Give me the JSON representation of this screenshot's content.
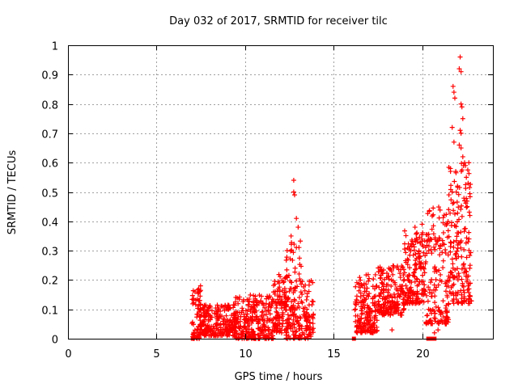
{
  "chart_data": {
    "type": "scatter",
    "title": "Day 032 of 2017, SRMTID for receiver tilc",
    "xlabel": "GPS time / hours",
    "ylabel": "SRMTID / TECUs",
    "xlim": [
      0,
      24
    ],
    "ylim": [
      0,
      1
    ],
    "xticks": [
      0,
      5,
      10,
      15,
      20
    ],
    "xtick_labels": [
      "0",
      "5",
      "10",
      "15",
      "20"
    ],
    "yticks": [
      0,
      0.1,
      0.2,
      0.3,
      0.4,
      0.5,
      0.6,
      0.7,
      0.8,
      0.9,
      1
    ],
    "ytick_labels": [
      "0",
      "0.1",
      "0.2",
      "0.3",
      "0.4",
      "0.5",
      "0.6",
      "0.7",
      "0.8",
      "0.9",
      "1"
    ],
    "grid": true,
    "marker": "+",
    "color": "#ff0000",
    "square_markers": [
      {
        "x": 7.05,
        "y": 0.0
      },
      {
        "x": 16.15,
        "y": 0.0
      },
      {
        "x": 20.35,
        "y": 0.0
      },
      {
        "x": 20.55,
        "y": 0.0
      },
      {
        "x": 20.7,
        "y": 0.0
      }
    ],
    "clusters": [
      {
        "x0": 7.0,
        "x1": 7.5,
        "count": 60,
        "ymin": 0.0,
        "ymax": 0.18,
        "seed": 11
      },
      {
        "x0": 7.4,
        "x1": 9.5,
        "count": 260,
        "ymin": 0.01,
        "ymax": 0.12,
        "seed": 12
      },
      {
        "x0": 9.4,
        "x1": 11.6,
        "count": 260,
        "ymin": 0.0,
        "ymax": 0.15,
        "seed": 13
      },
      {
        "x0": 11.6,
        "x1": 12.4,
        "count": 110,
        "ymin": 0.02,
        "ymax": 0.22,
        "seed": 14
      },
      {
        "x0": 12.3,
        "x1": 13.2,
        "count": 130,
        "ymin": 0.0,
        "ymax": 0.34,
        "seed": 15
      },
      {
        "x0": 13.2,
        "x1": 13.9,
        "count": 70,
        "ymin": 0.0,
        "ymax": 0.2,
        "seed": 16
      },
      {
        "x0": 16.2,
        "x1": 17.5,
        "count": 170,
        "ymin": 0.02,
        "ymax": 0.22,
        "seed": 17
      },
      {
        "x0": 17.5,
        "x1": 19.0,
        "count": 190,
        "ymin": 0.08,
        "ymax": 0.25,
        "seed": 18
      },
      {
        "x0": 19.0,
        "x1": 20.2,
        "count": 170,
        "ymin": 0.12,
        "ymax": 0.37,
        "seed": 19
      },
      {
        "x0": 20.2,
        "x1": 21.5,
        "count": 160,
        "ymin": 0.05,
        "ymax": 0.45,
        "seed": 20
      },
      {
        "x0": 21.5,
        "x1": 22.8,
        "count": 170,
        "ymin": 0.12,
        "ymax": 0.6,
        "seed": 21
      }
    ],
    "points": [
      {
        "x": 12.75,
        "y": 0.54
      },
      {
        "x": 12.75,
        "y": 0.5
      },
      {
        "x": 12.8,
        "y": 0.49
      },
      {
        "x": 12.9,
        "y": 0.41
      },
      {
        "x": 13.0,
        "y": 0.38
      },
      {
        "x": 12.6,
        "y": 0.35
      },
      {
        "x": 22.15,
        "y": 0.96
      },
      {
        "x": 22.1,
        "y": 0.92
      },
      {
        "x": 22.2,
        "y": 0.91
      },
      {
        "x": 21.75,
        "y": 0.86
      },
      {
        "x": 21.8,
        "y": 0.84
      },
      {
        "x": 21.85,
        "y": 0.82
      },
      {
        "x": 22.2,
        "y": 0.8
      },
      {
        "x": 22.25,
        "y": 0.79
      },
      {
        "x": 22.3,
        "y": 0.75
      },
      {
        "x": 22.15,
        "y": 0.71
      },
      {
        "x": 21.7,
        "y": 0.72
      },
      {
        "x": 22.2,
        "y": 0.7
      },
      {
        "x": 21.8,
        "y": 0.67
      },
      {
        "x": 22.1,
        "y": 0.66
      },
      {
        "x": 22.2,
        "y": 0.65
      },
      {
        "x": 22.3,
        "y": 0.62
      },
      {
        "x": 22.4,
        "y": 0.6
      },
      {
        "x": 22.45,
        "y": 0.59
      },
      {
        "x": 21.6,
        "y": 0.58
      },
      {
        "x": 21.9,
        "y": 0.57
      },
      {
        "x": 22.5,
        "y": 0.55
      },
      {
        "x": 22.6,
        "y": 0.53
      },
      {
        "x": 22.0,
        "y": 0.52
      },
      {
        "x": 21.7,
        "y": 0.5
      },
      {
        "x": 22.4,
        "y": 0.47
      },
      {
        "x": 22.55,
        "y": 0.45
      },
      {
        "x": 22.7,
        "y": 0.42
      },
      {
        "x": 21.5,
        "y": 0.44
      },
      {
        "x": 22.65,
        "y": 0.34
      },
      {
        "x": 22.6,
        "y": 0.33
      },
      {
        "x": 22.55,
        "y": 0.2
      },
      {
        "x": 22.6,
        "y": 0.18
      },
      {
        "x": 22.65,
        "y": 0.17
      },
      {
        "x": 19.6,
        "y": 0.38
      },
      {
        "x": 19.7,
        "y": 0.36
      },
      {
        "x": 20.0,
        "y": 0.39
      },
      {
        "x": 16.3,
        "y": 0.04
      },
      {
        "x": 16.5,
        "y": 0.05
      },
      {
        "x": 18.3,
        "y": 0.03
      },
      {
        "x": 20.7,
        "y": 0.02
      },
      {
        "x": 20.9,
        "y": 0.03
      },
      {
        "x": 21.5,
        "y": 0.12
      },
      {
        "x": 20.3,
        "y": 0.08
      },
      {
        "x": 13.7,
        "y": 0.02
      },
      {
        "x": 13.8,
        "y": 0.03
      }
    ]
  }
}
